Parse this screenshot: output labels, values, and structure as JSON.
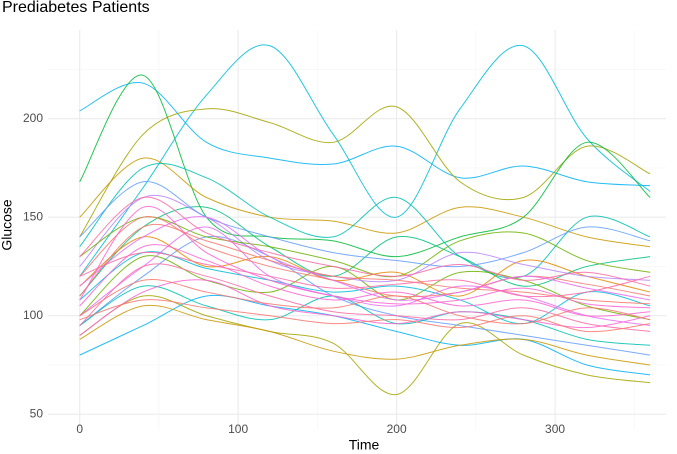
{
  "chart_data": {
    "type": "line",
    "title": "Prediabetes Patients",
    "x_label": "Time",
    "y_label": "Glucose",
    "x": [
      0,
      40,
      80,
      120,
      160,
      200,
      240,
      280,
      320,
      360
    ],
    "xlim": [
      -20,
      370
    ],
    "ylim": [
      42,
      245
    ],
    "xticks": [
      0,
      100,
      200,
      300
    ],
    "yticks": [
      50,
      100,
      150,
      200
    ],
    "minor_xticks": [
      50,
      150,
      250,
      350
    ],
    "minor_yticks": [
      75,
      125,
      175,
      225
    ],
    "grid": true,
    "series": [
      {
        "color": "#00BCD8",
        "values": [
          120,
          165,
          212,
          237,
          192,
          150,
          205,
          237,
          190,
          163
        ]
      },
      {
        "color": "#00B0F6",
        "values": [
          204,
          218,
          188,
          180,
          177,
          186,
          170,
          176,
          168,
          166
        ]
      },
      {
        "color": "#A3A500",
        "values": [
          140,
          192,
          205,
          198,
          188,
          206,
          168,
          160,
          186,
          172
        ]
      },
      {
        "color": "#A3A500",
        "values": [
          90,
          110,
          100,
          92,
          86,
          60,
          96,
          80,
          70,
          66
        ]
      },
      {
        "color": "#00BA38",
        "values": [
          168,
          222,
          150,
          140,
          138,
          130,
          140,
          150,
          188,
          160
        ]
      },
      {
        "color": "#C99800",
        "values": [
          150,
          180,
          160,
          150,
          148,
          142,
          155,
          150,
          140,
          135
        ]
      },
      {
        "color": "#00C0AF",
        "values": [
          135,
          175,
          170,
          150,
          140,
          160,
          130,
          120,
          150,
          140
        ]
      },
      {
        "color": "#619CFF",
        "values": [
          95,
          120,
          140,
          130,
          110,
          100,
          95,
          90,
          85,
          80
        ]
      },
      {
        "color": "#00BF7D",
        "values": [
          110,
          145,
          155,
          135,
          120,
          140,
          130,
          115,
          125,
          130
        ]
      },
      {
        "color": "#6BB100",
        "values": [
          100,
          130,
          118,
          112,
          125,
          108,
          122,
          118,
          105,
          98
        ]
      },
      {
        "color": "#E58700",
        "values": [
          115,
          140,
          125,
          130,
          118,
          122,
          110,
          128,
          120,
          112
        ]
      },
      {
        "color": "#00B0F6",
        "values": [
          80,
          95,
          110,
          105,
          100,
          92,
          85,
          88,
          75,
          70
        ]
      },
      {
        "color": "#B983FF",
        "values": [
          125,
          160,
          150,
          128,
          120,
          118,
          132,
          126,
          120,
          118
        ]
      },
      {
        "color": "#00C0AF",
        "values": [
          95,
          115,
          105,
          98,
          110,
          96,
          102,
          98,
          88,
          85
        ]
      },
      {
        "color": "#6BB100",
        "values": [
          130,
          150,
          140,
          135,
          128,
          120,
          138,
          142,
          128,
          122
        ]
      },
      {
        "color": "#00BCD8",
        "values": [
          108,
          132,
          124,
          118,
          112,
          115,
          108,
          96,
          112,
          105
        ]
      },
      {
        "color": "#C99800",
        "values": [
          88,
          105,
          98,
          92,
          82,
          78,
          85,
          88,
          80,
          75
        ]
      },
      {
        "color": "#619CFF",
        "values": [
          140,
          168,
          150,
          140,
          132,
          128,
          125,
          132,
          145,
          138
        ]
      },
      {
        "color": "#E76BF3",
        "values": [
          100,
          125,
          145,
          120,
          110,
          105,
          115,
          110,
          100,
          95
        ]
      },
      {
        "color": "#F8766D",
        "values": [
          120,
          150,
          135,
          125,
          118,
          110,
          112,
          120,
          116,
          110
        ]
      },
      {
        "color": "#FD61D1",
        "values": [
          105,
          135,
          128,
          115,
          108,
          112,
          105,
          108,
          100,
          102
        ]
      },
      {
        "color": "#FF67A4",
        "values": [
          95,
          125,
          120,
          110,
          102,
          100,
          98,
          104,
          96,
          92
        ]
      },
      {
        "color": "#F8766D",
        "values": [
          110,
          145,
          138,
          128,
          120,
          118,
          114,
          112,
          108,
          106
        ]
      },
      {
        "color": "#FF67A4",
        "values": [
          130,
          160,
          142,
          132,
          125,
          120,
          126,
          118,
          122,
          115
        ]
      },
      {
        "color": "#FD61D1",
        "values": [
          90,
          112,
          118,
          105,
          100,
          96,
          102,
          98,
          94,
          100
        ]
      },
      {
        "color": "#E76BF3",
        "values": [
          115,
          140,
          150,
          130,
          118,
          108,
          112,
          120,
          114,
          108
        ]
      },
      {
        "color": "#F8766D",
        "values": [
          100,
          118,
          112,
          106,
          104,
          110,
          100,
          96,
          104,
          98
        ]
      },
      {
        "color": "#FF67A4",
        "values": [
          120,
          132,
          126,
          120,
          114,
          116,
          118,
          110,
          112,
          120
        ]
      },
      {
        "color": "#FD61D1",
        "values": [
          108,
          155,
          132,
          118,
          110,
          106,
          108,
          114,
          106,
          104
        ]
      },
      {
        "color": "#F8766D",
        "values": [
          98,
          108,
          104,
          100,
          96,
          98,
          94,
          100,
          92,
          96
        ]
      }
    ]
  }
}
